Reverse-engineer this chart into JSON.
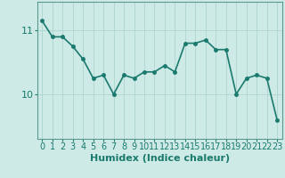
{
  "x": [
    0,
    1,
    2,
    3,
    4,
    5,
    6,
    7,
    8,
    9,
    10,
    11,
    12,
    13,
    14,
    15,
    16,
    17,
    18,
    19,
    20,
    21,
    22,
    23
  ],
  "y": [
    11.15,
    10.9,
    10.9,
    10.75,
    10.55,
    10.25,
    10.3,
    10.0,
    10.3,
    10.25,
    10.35,
    10.35,
    10.45,
    10.35,
    10.8,
    10.8,
    10.85,
    10.7,
    10.7,
    10.0,
    10.25,
    10.3,
    10.25,
    9.6
  ],
  "line_color": "#1a7a6e",
  "marker_color": "#1a7a6e",
  "bg_color": "#ceeae6",
  "grid_color": "#aed4ce",
  "xlabel": "Humidex (Indice chaleur)",
  "ylim": [
    9.3,
    11.45
  ],
  "yticks": [
    10,
    11
  ],
  "tick_color": "#1a7a6e",
  "axis_color": "#5a9a8e",
  "xlabel_fontsize": 8,
  "tick_fontsize": 7,
  "line_width": 1.2,
  "marker_size": 2.5
}
